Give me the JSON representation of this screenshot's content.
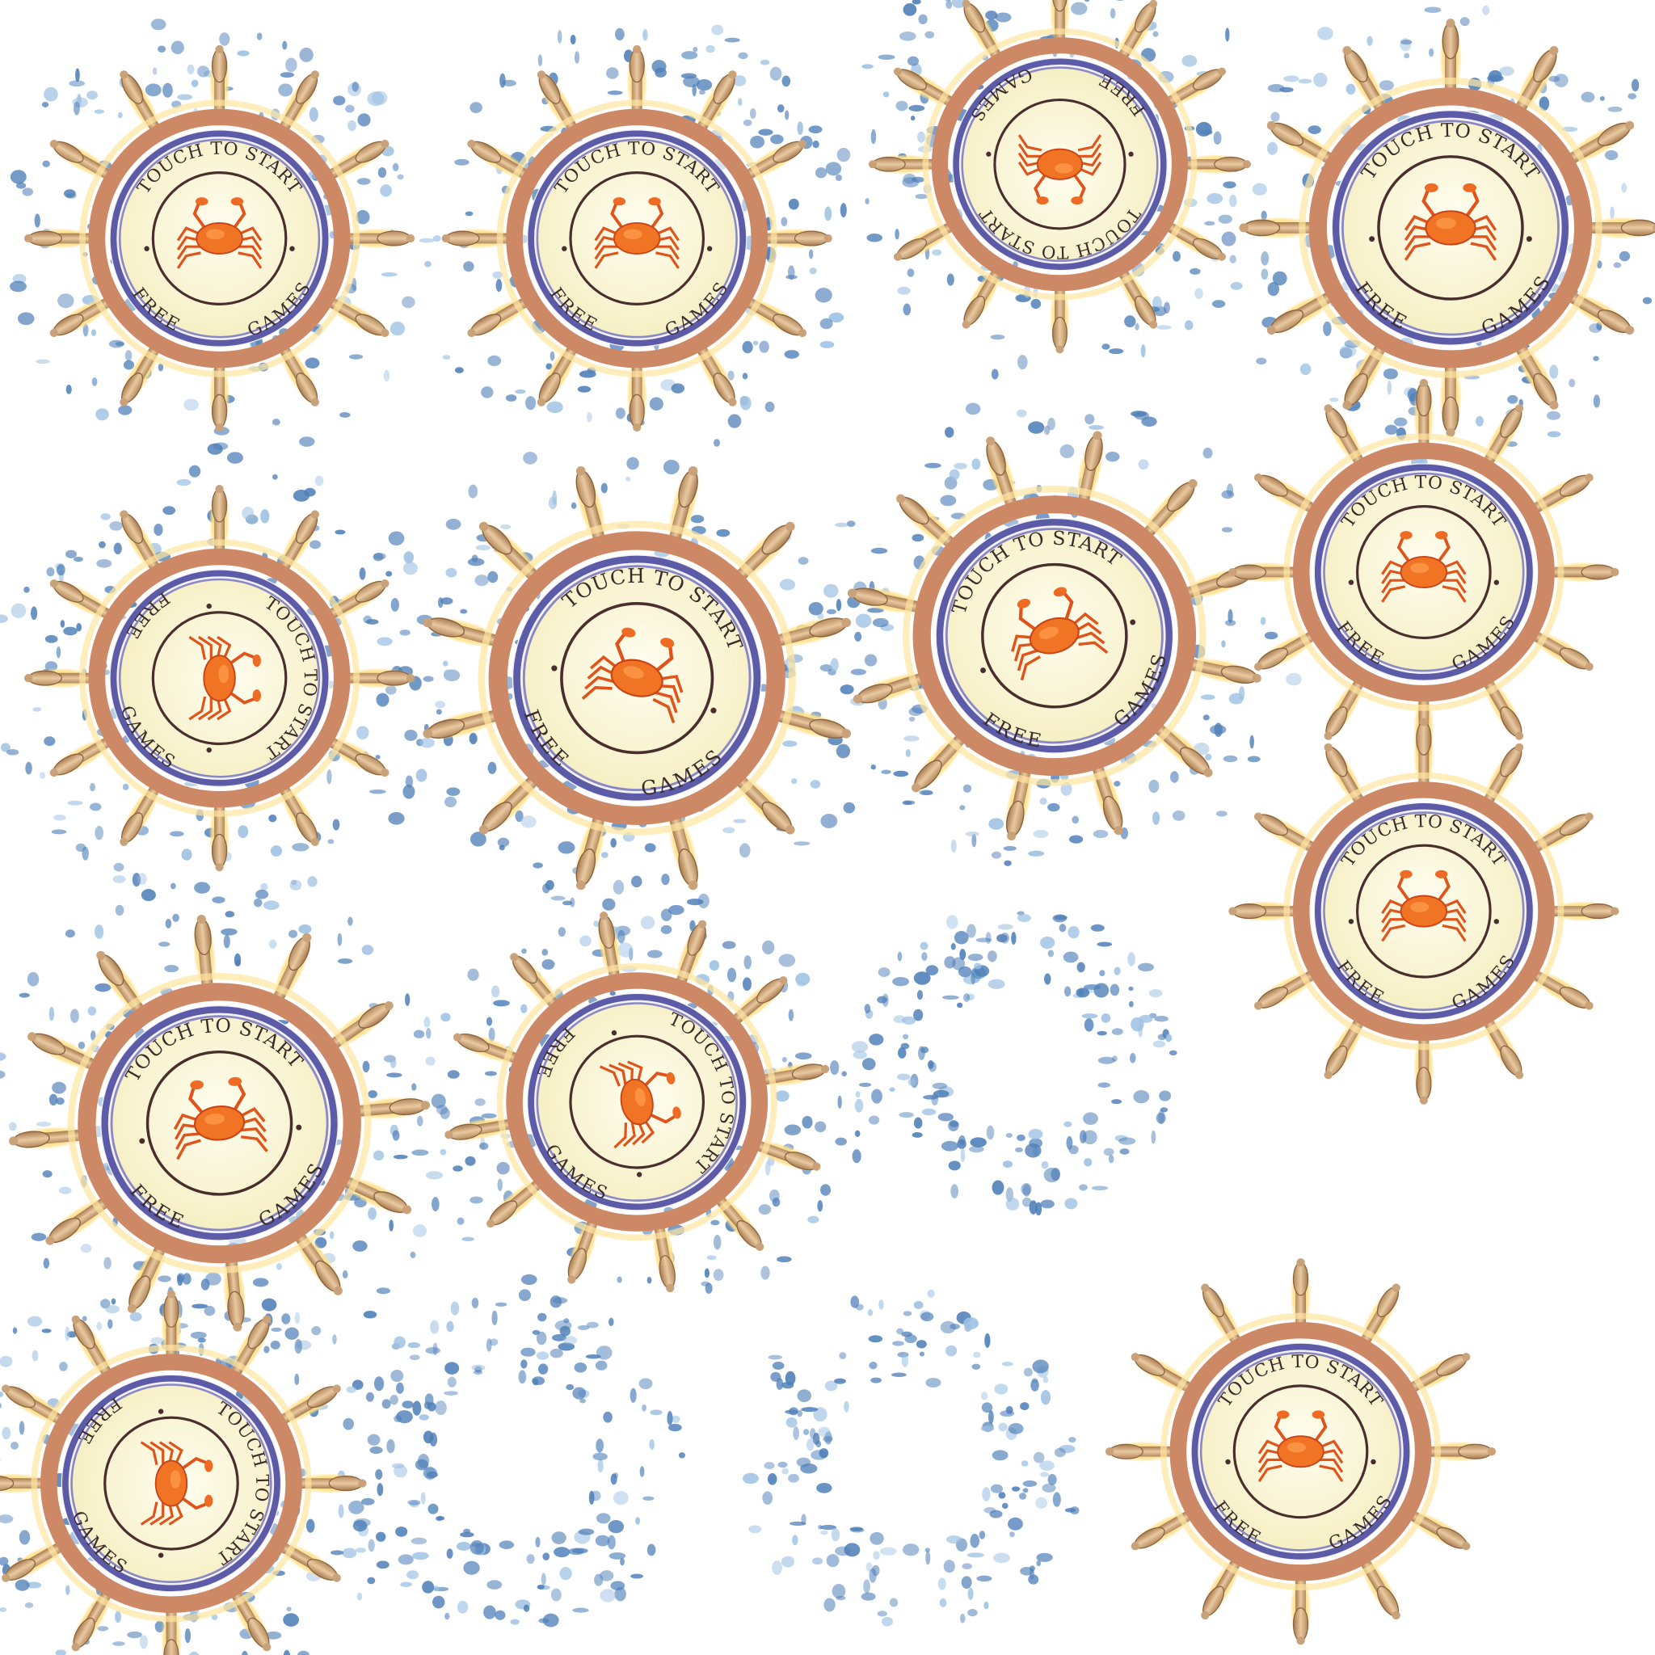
{
  "wheels": [
    {
      "top": "TOUCH TO START",
      "left": "FREE",
      "right": "GAMES"
    },
    {
      "top": "TOUCH TO START",
      "left": "FREE",
      "right": "GAMES"
    },
    {
      "top": "TOUCH TO START",
      "left": "FREE",
      "right": "GAMES"
    },
    {
      "top": "TOUCH TO START",
      "left": "FREE",
      "right": "GAMES"
    },
    {
      "top": "TOUCH TO START",
      "left": "FREE",
      "right": "GAMES"
    },
    {
      "top": "TOUCH TO START",
      "left": "FREE",
      "right": "GAMES"
    },
    {
      "top": "TOUCH TO START",
      "left": "FREE",
      "right": "GAMES"
    },
    {
      "top": "TOUCH TO START",
      "left": "FREE",
      "right": "GAMES"
    },
    {
      "top": "TOUCH TO START",
      "left": "FREE",
      "right": "GAMES"
    },
    {
      "top": "TOUCH TO START",
      "left": "FREE",
      "right": "GAMES"
    },
    {
      "top": "TOUCH TO START",
      "left": "FREE",
      "right": "GAMES"
    },
    {
      "top": "TOUCH TO START",
      "left": "FREE",
      "right": "GAMES"
    },
    {
      "top": "TOUCH TO START",
      "left": "FREE",
      "right": "GAMES"
    }
  ]
}
